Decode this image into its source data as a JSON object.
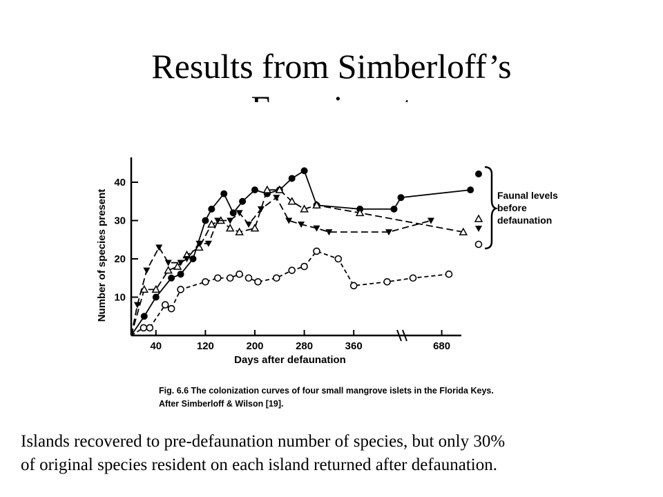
{
  "slide": {
    "title_line1": "Results from Simberloff’s",
    "title_line2": "Experiment",
    "caption_line1": "Islands recovered to pre-defaunation number of species, but only 30%",
    "caption_line2": "of original species resident on each island returned after defaunation."
  },
  "chart_data": {
    "type": "line",
    "xlabel": "Days after defaunation",
    "ylabel": "Number of species present",
    "x_ticks": [
      40,
      120,
      200,
      280,
      360,
      680
    ],
    "y_ticks": [
      10,
      20,
      30,
      40
    ],
    "ylim": [
      0,
      45
    ],
    "figure_caption_line1": "Fig. 6.6  The colonization curves of four small mangrove islets in the Florida Keys.",
    "figure_caption_line2": "After Simberloff & Wilson [19].",
    "legend_label": [
      "Faunal levels",
      "before",
      "defaunation"
    ],
    "series": [
      {
        "marker": "filled-circle",
        "style": "solid",
        "x": [
          0,
          21,
          40,
          65,
          80,
          100,
          120,
          130,
          150,
          165,
          180,
          200,
          220,
          240,
          260,
          280,
          300,
          370,
          490,
          530,
          760
        ],
        "y": [
          0,
          5,
          10,
          15,
          16,
          20,
          30,
          33,
          37,
          32,
          35,
          38,
          37,
          38,
          41,
          43,
          34,
          33,
          33,
          36,
          38
        ],
        "pre_defaunation": 40
      },
      {
        "marker": "open-triangle",
        "style": "dashed",
        "x": [
          0,
          21,
          40,
          60,
          75,
          90,
          110,
          130,
          145,
          160,
          175,
          200,
          220,
          240,
          260,
          280,
          300,
          370,
          740
        ],
        "y": [
          0,
          12,
          12,
          17,
          18,
          21,
          23,
          29,
          30,
          28,
          27,
          28,
          38,
          38,
          35,
          33,
          34,
          32,
          27
        ],
        "pre_defaunation": 29
      },
      {
        "marker": "filled-triangle",
        "style": "dashed",
        "x": [
          0,
          10,
          25,
          45,
          60,
          80,
          90,
          110,
          125,
          140,
          160,
          175,
          190,
          210,
          235,
          255,
          275,
          300,
          320,
          460,
          650
        ],
        "y": [
          0,
          8,
          17,
          23,
          19,
          19,
          20,
          24,
          24,
          30,
          30,
          32,
          29,
          33,
          36,
          30,
          29,
          28,
          27,
          27,
          30
        ],
        "pre_defaunation": 25
      },
      {
        "marker": "open-circle",
        "style": "dashed",
        "x": [
          0,
          20,
          30,
          55,
          65,
          80,
          120,
          140,
          160,
          175,
          190,
          205,
          235,
          260,
          280,
          300,
          335,
          360,
          450,
          600,
          700
        ],
        "y": [
          0,
          2,
          2,
          8,
          7,
          12,
          14,
          15,
          15,
          16,
          15,
          14,
          15,
          17,
          18,
          22,
          20,
          13,
          14,
          15,
          16
        ],
        "pre_defaunation": 18
      }
    ]
  }
}
